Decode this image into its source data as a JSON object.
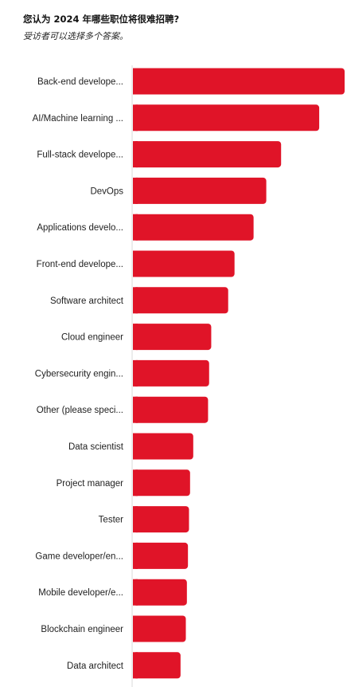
{
  "header": {
    "title": "您认为 2024 年哪些职位将很难招聘?",
    "subtitle": "受访者可以选择多个答案。"
  },
  "colors": {
    "bar": "#e01428",
    "axis": "#d8d8d8"
  },
  "chart_data": {
    "type": "bar",
    "orientation": "horizontal",
    "title": "您认为 2024 年哪些职位将很难招聘?",
    "subtitle": "受访者可以选择多个答案。",
    "categories": [
      "Back-end develope...",
      "AI/Machine learning ...",
      "Full-stack develope...",
      "DevOps",
      "Applications develo...",
      "Front-end develope...",
      "Software architect",
      "Cloud engineer",
      "Cybersecurity engin...",
      "Other (please speci...",
      "Data scientist",
      "Project manager",
      "Tester",
      "Game developer/en...",
      "Mobile developer/e...",
      "Blockchain engineer",
      "Data architect"
    ],
    "values": [
      100,
      88,
      70,
      63,
      57,
      48,
      45,
      37,
      36,
      35.5,
      28.5,
      27,
      26.5,
      26,
      25.5,
      25,
      22.5
    ],
    "xlim": [
      0,
      100
    ],
    "grid": false,
    "legend": "none"
  }
}
